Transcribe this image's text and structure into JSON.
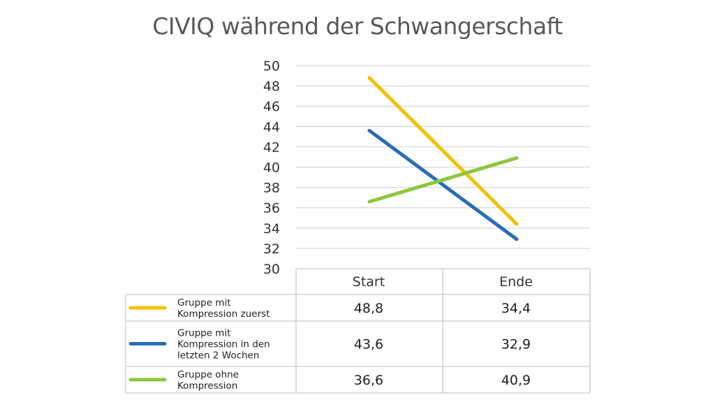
{
  "chart_data": {
    "type": "line",
    "title": "CIVIQ während der Schwangerschaft",
    "categories": [
      "Start",
      "Ende"
    ],
    "ylim": [
      30,
      50
    ],
    "ytick_step": 2,
    "yticks": [
      "30",
      "32",
      "34",
      "36",
      "38",
      "40",
      "42",
      "44",
      "46",
      "48",
      "50"
    ],
    "grid": true,
    "series": [
      {
        "name_lines": [
          "Gruppe mit",
          "Kompression zuerst"
        ],
        "name": "Gruppe mit Kompression zuerst",
        "color": "#f5c000",
        "values": [
          48.8,
          34.4
        ],
        "labels": [
          "48,8",
          "34,4"
        ]
      },
      {
        "name_lines": [
          "Gruppe mit",
          "Kompression in den",
          "letzten 2 Wochen"
        ],
        "name": "Gruppe mit Kompression in den letzten 2 Wochen",
        "color": "#2a6db5",
        "values": [
          43.6,
          32.9
        ],
        "labels": [
          "43,6",
          "32,9"
        ]
      },
      {
        "name_lines": [
          "Gruppe ohne",
          "Kompression"
        ],
        "name": "Gruppe ohne Kompression",
        "color": "#8cc63f",
        "values": [
          36.6,
          40.9
        ],
        "labels": [
          "36,6",
          "40,9"
        ]
      }
    ]
  }
}
